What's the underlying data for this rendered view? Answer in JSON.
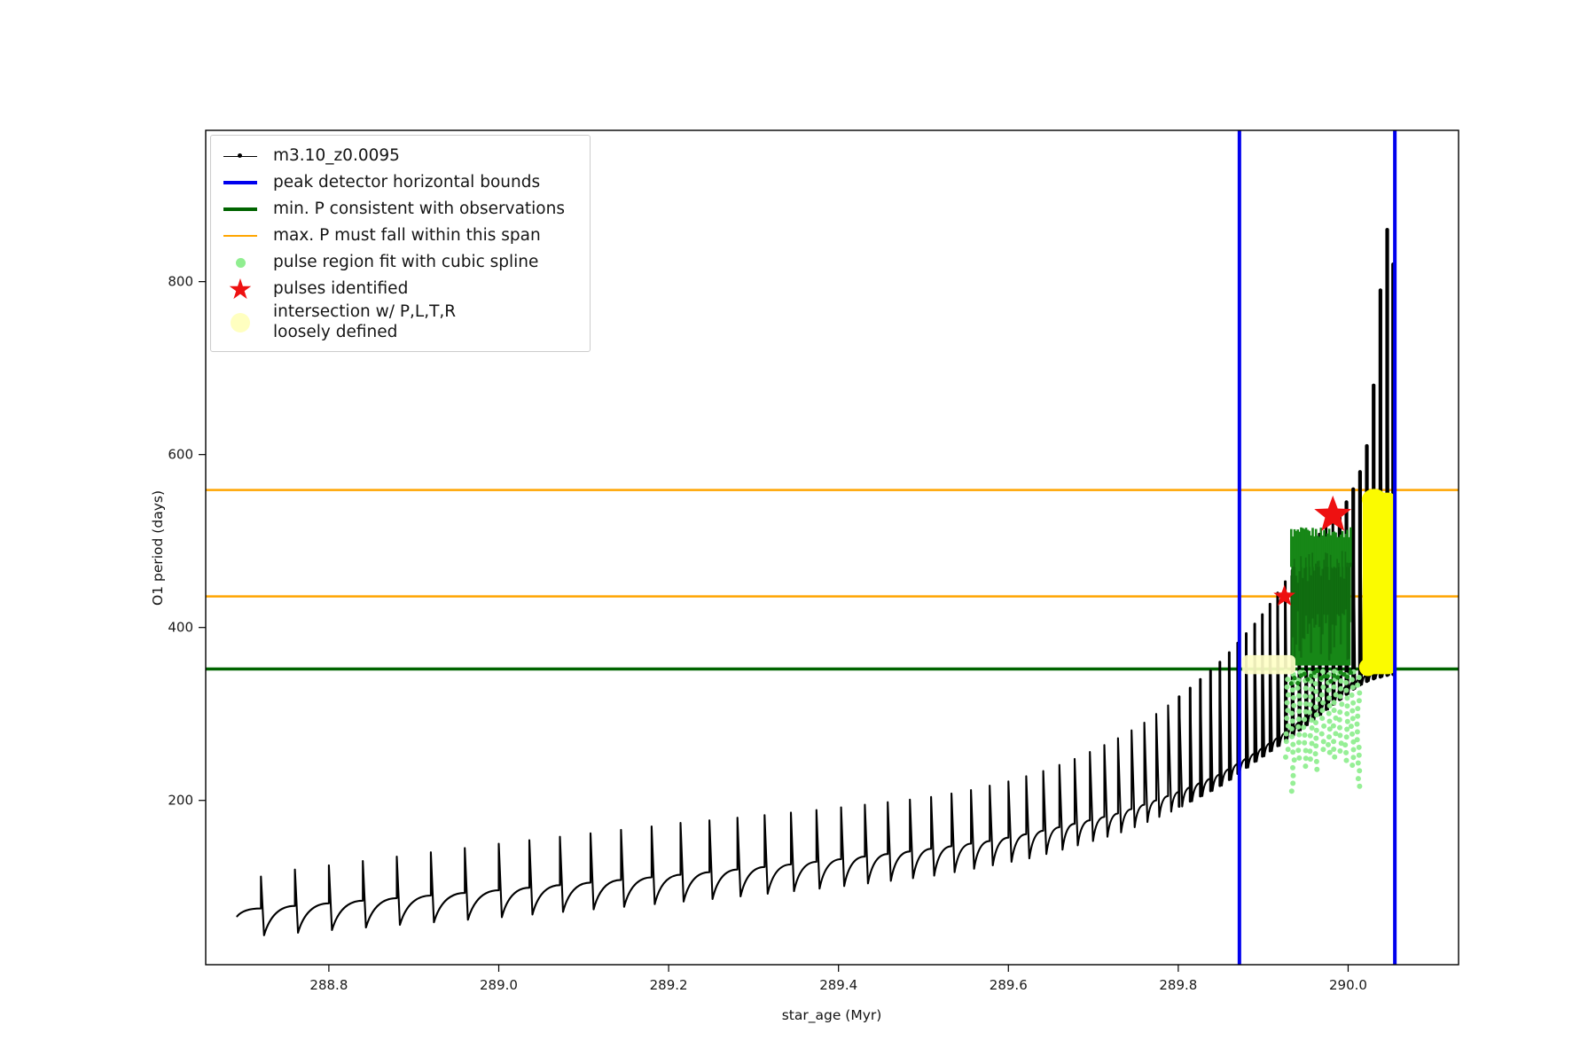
{
  "axes": {
    "xlabel": "star_age (Myr)",
    "ylabel": "O1 period (days)"
  },
  "legend": {
    "items": [
      {
        "label": "m3.10_z0.0095",
        "marker": "line-dot",
        "color": "#000000",
        "lw": 1.5
      },
      {
        "label": "peak detector horizontal bounds",
        "marker": "line",
        "color": "#0000ee",
        "lw": 4
      },
      {
        "label": "min. P consistent with observations",
        "marker": "line",
        "color": "#006400",
        "lw": 4
      },
      {
        "label": "max. P must fall within this span",
        "marker": "line",
        "color": "#ffa500",
        "lw": 2
      },
      {
        "label": "pulse region fit with cubic spline",
        "marker": "dot",
        "color": "#90ee90",
        "size": 11
      },
      {
        "label": "pulses identified",
        "marker": "star",
        "color": "#ee1111",
        "size": 32
      },
      {
        "label": "intersection w/ P,L,T,R",
        "label2": "loosely defined",
        "marker": "dot",
        "color": "#ffffc0",
        "size": 22
      }
    ]
  },
  "chart_data": {
    "type": "line",
    "title": "",
    "xlabel": "star_age (Myr)",
    "ylabel": "O1 period (days)",
    "xlim": [
      288.655,
      290.13
    ],
    "ylim": [
      10,
      975
    ],
    "xticks": [
      288.8,
      289.0,
      289.2,
      289.4,
      289.6,
      289.8,
      290.0
    ],
    "xtick_labels": [
      "288.8",
      "289.0",
      "289.2",
      "289.4",
      "289.6",
      "289.8",
      "290.0"
    ],
    "yticks": [
      200,
      400,
      600,
      800
    ],
    "ytick_labels": [
      "200",
      "400",
      "600",
      "800"
    ],
    "series_label": "m3.10_z0.0095",
    "cycles": [
      [
        288.72,
        75,
        112,
        44
      ],
      [
        288.76,
        78,
        120,
        47
      ],
      [
        288.8,
        81,
        125,
        50
      ],
      [
        288.84,
        84,
        130,
        53
      ],
      [
        288.88,
        87,
        135,
        56
      ],
      [
        288.92,
        90,
        140,
        59
      ],
      [
        288.96,
        93,
        145,
        62
      ],
      [
        289.0,
        96,
        150,
        65
      ],
      [
        289.036,
        99,
        154,
        68
      ],
      [
        289.072,
        102,
        158,
        71
      ],
      [
        289.108,
        105,
        162,
        74
      ],
      [
        289.144,
        108,
        166,
        77
      ],
      [
        289.18,
        111,
        170,
        80
      ],
      [
        289.214,
        114,
        174,
        83
      ],
      [
        289.248,
        117,
        177,
        86
      ],
      [
        289.281,
        120,
        180,
        89
      ],
      [
        289.313,
        123,
        183,
        92
      ],
      [
        289.344,
        126,
        186,
        95
      ],
      [
        289.374,
        129,
        189,
        98
      ],
      [
        289.403,
        132,
        192,
        101
      ],
      [
        289.431,
        135,
        195,
        104
      ],
      [
        289.458,
        138,
        198,
        107
      ],
      [
        289.484,
        141,
        201,
        110
      ],
      [
        289.509,
        144,
        204,
        113
      ],
      [
        289.533,
        147,
        208,
        117
      ],
      [
        289.556,
        150,
        212,
        121
      ],
      [
        289.578,
        153,
        217,
        125
      ],
      [
        289.6,
        157,
        222,
        129
      ],
      [
        289.621,
        161,
        228,
        133
      ],
      [
        289.641,
        165,
        234,
        138
      ],
      [
        289.66,
        169,
        241,
        143
      ],
      [
        289.678,
        173,
        248,
        148
      ],
      [
        289.696,
        177,
        256,
        153
      ],
      [
        289.713,
        181,
        264,
        158
      ],
      [
        289.729,
        185,
        272,
        163
      ],
      [
        289.745,
        190,
        281,
        169
      ],
      [
        289.76,
        195,
        290,
        175
      ],
      [
        289.774,
        200,
        300,
        181
      ],
      [
        289.788,
        205,
        310,
        187
      ],
      [
        289.801,
        210,
        320,
        193
      ],
      [
        289.814,
        215,
        330,
        199
      ],
      [
        289.826,
        220,
        340,
        205
      ],
      [
        289.838,
        225,
        350,
        211
      ],
      [
        289.849,
        230,
        360,
        217
      ],
      [
        289.86,
        236,
        371,
        224
      ],
      [
        289.87,
        242,
        382,
        231
      ],
      [
        289.88,
        248,
        393,
        238
      ],
      [
        289.89,
        254,
        404,
        245
      ],
      [
        289.899,
        260,
        415,
        251
      ],
      [
        289.908,
        266,
        427,
        257
      ],
      [
        289.917,
        272,
        440,
        263
      ],
      [
        289.926,
        278,
        453,
        269
      ],
      [
        289.934,
        284,
        466,
        275
      ],
      [
        289.942,
        290,
        478,
        281
      ],
      [
        289.95,
        296,
        489,
        287
      ],
      [
        289.958,
        302,
        499,
        293
      ],
      [
        289.966,
        308,
        508,
        299
      ],
      [
        289.974,
        314,
        516,
        305
      ],
      [
        289.982,
        320,
        524,
        311
      ],
      [
        289.99,
        326,
        532,
        317
      ],
      [
        289.998,
        332,
        545,
        323
      ],
      [
        290.006,
        337,
        560,
        329
      ],
      [
        290.014,
        341,
        580,
        334
      ],
      [
        290.022,
        345,
        610,
        338
      ],
      [
        290.03,
        348,
        680,
        341
      ],
      [
        290.038,
        350,
        790,
        343
      ],
      [
        290.046,
        352,
        860,
        345
      ],
      [
        290.053,
        353,
        820,
        346
      ]
    ],
    "vlines": {
      "label": "peak detector horizontal bounds",
      "color": "#0000ee",
      "width": 4,
      "x": [
        289.872,
        290.055
      ]
    },
    "hline_green": {
      "label": "min. P consistent with observations",
      "color": "#006400",
      "width": 3.5,
      "y": 352
    },
    "hlines_orange": {
      "label": "max. P must fall within this span",
      "color": "#ffa500",
      "width": 2.5,
      "y": [
        436,
        559
      ]
    },
    "pulse_scatter": {
      "label": "pulse region fit with cubic spline",
      "color": "#90ee90",
      "x0": 289.928,
      "x1": 290.012,
      "columns": 13,
      "y0": 205,
      "y1": 350
    },
    "fit_region": {
      "color": "#178717",
      "dark": "#0c5c0c",
      "x0": 289.933,
      "x1": 290.003,
      "y0": 356,
      "y1": 500
    },
    "intersection_region": {
      "label": "intersection w/ P,L,T,R loosely defined",
      "color": "#fbfb00",
      "x0": 290.017,
      "x1": 290.057,
      "y0": 346,
      "y1": 556
    },
    "intersection_faint": {
      "color": "#ffffc8",
      "x0": 289.875,
      "x1": 289.938,
      "y0": 346,
      "y1": 368
    },
    "pulses": {
      "label": "pulses identified",
      "color": "#ee1111",
      "points": [
        {
          "x": 289.925,
          "y": 436,
          "r": 13
        },
        {
          "x": 289.952,
          "y": 474,
          "r": 15,
          "behind": true
        },
        {
          "x": 289.982,
          "y": 530,
          "r": 22
        }
      ]
    }
  }
}
